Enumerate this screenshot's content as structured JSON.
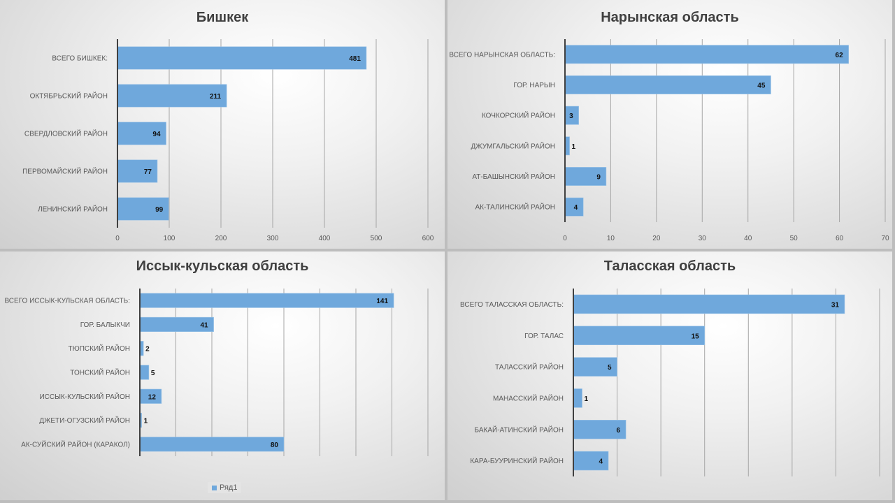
{
  "bar_color": "#6fa8dc",
  "legend_label": "Ряд1",
  "chart_data": [
    {
      "type": "bar",
      "orientation": "horizontal",
      "title": "Бишкек",
      "categories": [
        "ВСЕГО БИШКЕК:",
        "ОКТЯБРЬСКИЙ РАЙОН",
        "СВЕРДЛОВСКИЙ РАЙОН",
        "ПЕРВОМАЙСКИЙ РАЙОН",
        "ЛЕНИНСКИЙ РАЙОН"
      ],
      "values": [
        481,
        211,
        94,
        77,
        99
      ],
      "xlim": [
        0,
        600
      ],
      "xticks": [
        0,
        100,
        200,
        300,
        400,
        500,
        600
      ],
      "grid": true,
      "legend": null
    },
    {
      "type": "bar",
      "orientation": "horizontal",
      "title": "Нарынская область",
      "categories": [
        "ВСЕГО НАРЫНСКАЯ ОБЛАСТЬ:",
        "ГОР. НАРЫН",
        "КОЧКОРСКИЙ РАЙОН",
        "ДЖУМГАЛЬСКИЙ РАЙОН",
        "АТ-БАШЫНСКИЙ РАЙОН",
        "АК-ТАЛИНСКИЙ РАЙОН"
      ],
      "values": [
        62,
        45,
        3,
        1,
        9,
        4
      ],
      "xlim": [
        0,
        70
      ],
      "xticks": [
        0,
        10,
        20,
        30,
        40,
        50,
        60,
        70
      ],
      "grid": true,
      "legend": null
    },
    {
      "type": "bar",
      "orientation": "horizontal",
      "title": "Иссык-кульская область",
      "categories": [
        "ВСЕГО ИССЫК-КУЛЬСКАЯ ОБЛАСТЬ:",
        "ГОР. БАЛЫКЧИ",
        "ТЮПСКИЙ РАЙОН",
        "ТОНСКИЙ РАЙОН",
        "ИССЫК-КУЛЬСКИЙ РАЙОН",
        "ДЖЕТИ-ОГУЗСКИЙ РАЙОН",
        "АК-СУЙСКИЙ РАЙОН (КАРАКОЛ)"
      ],
      "values": [
        141,
        41,
        2,
        5,
        12,
        1,
        80
      ],
      "xlim": [
        0,
        160
      ],
      "xticks": [
        0,
        20,
        40,
        60,
        80,
        100,
        120,
        140,
        160
      ],
      "grid": true,
      "legend": "bottom"
    },
    {
      "type": "bar",
      "orientation": "horizontal",
      "title": "Таласская область",
      "categories": [
        "ВСЕГО ТАЛАССКАЯ ОБЛАСТЬ:",
        "ГОР. ТАЛАС",
        "ТАЛАССКИЙ РАЙОН",
        "МАНАССКИЙ РАЙОН",
        "БАКАЙ-АТИНСКИЙ РАЙОН",
        "КАРА-БУУРИНСКИЙ РАЙОН"
      ],
      "values": [
        31,
        15,
        5,
        1,
        6,
        4
      ],
      "xlim": [
        0,
        35
      ],
      "xticks": [
        0,
        5,
        10,
        15,
        20,
        25,
        30,
        35
      ],
      "grid": true,
      "legend": null
    }
  ]
}
